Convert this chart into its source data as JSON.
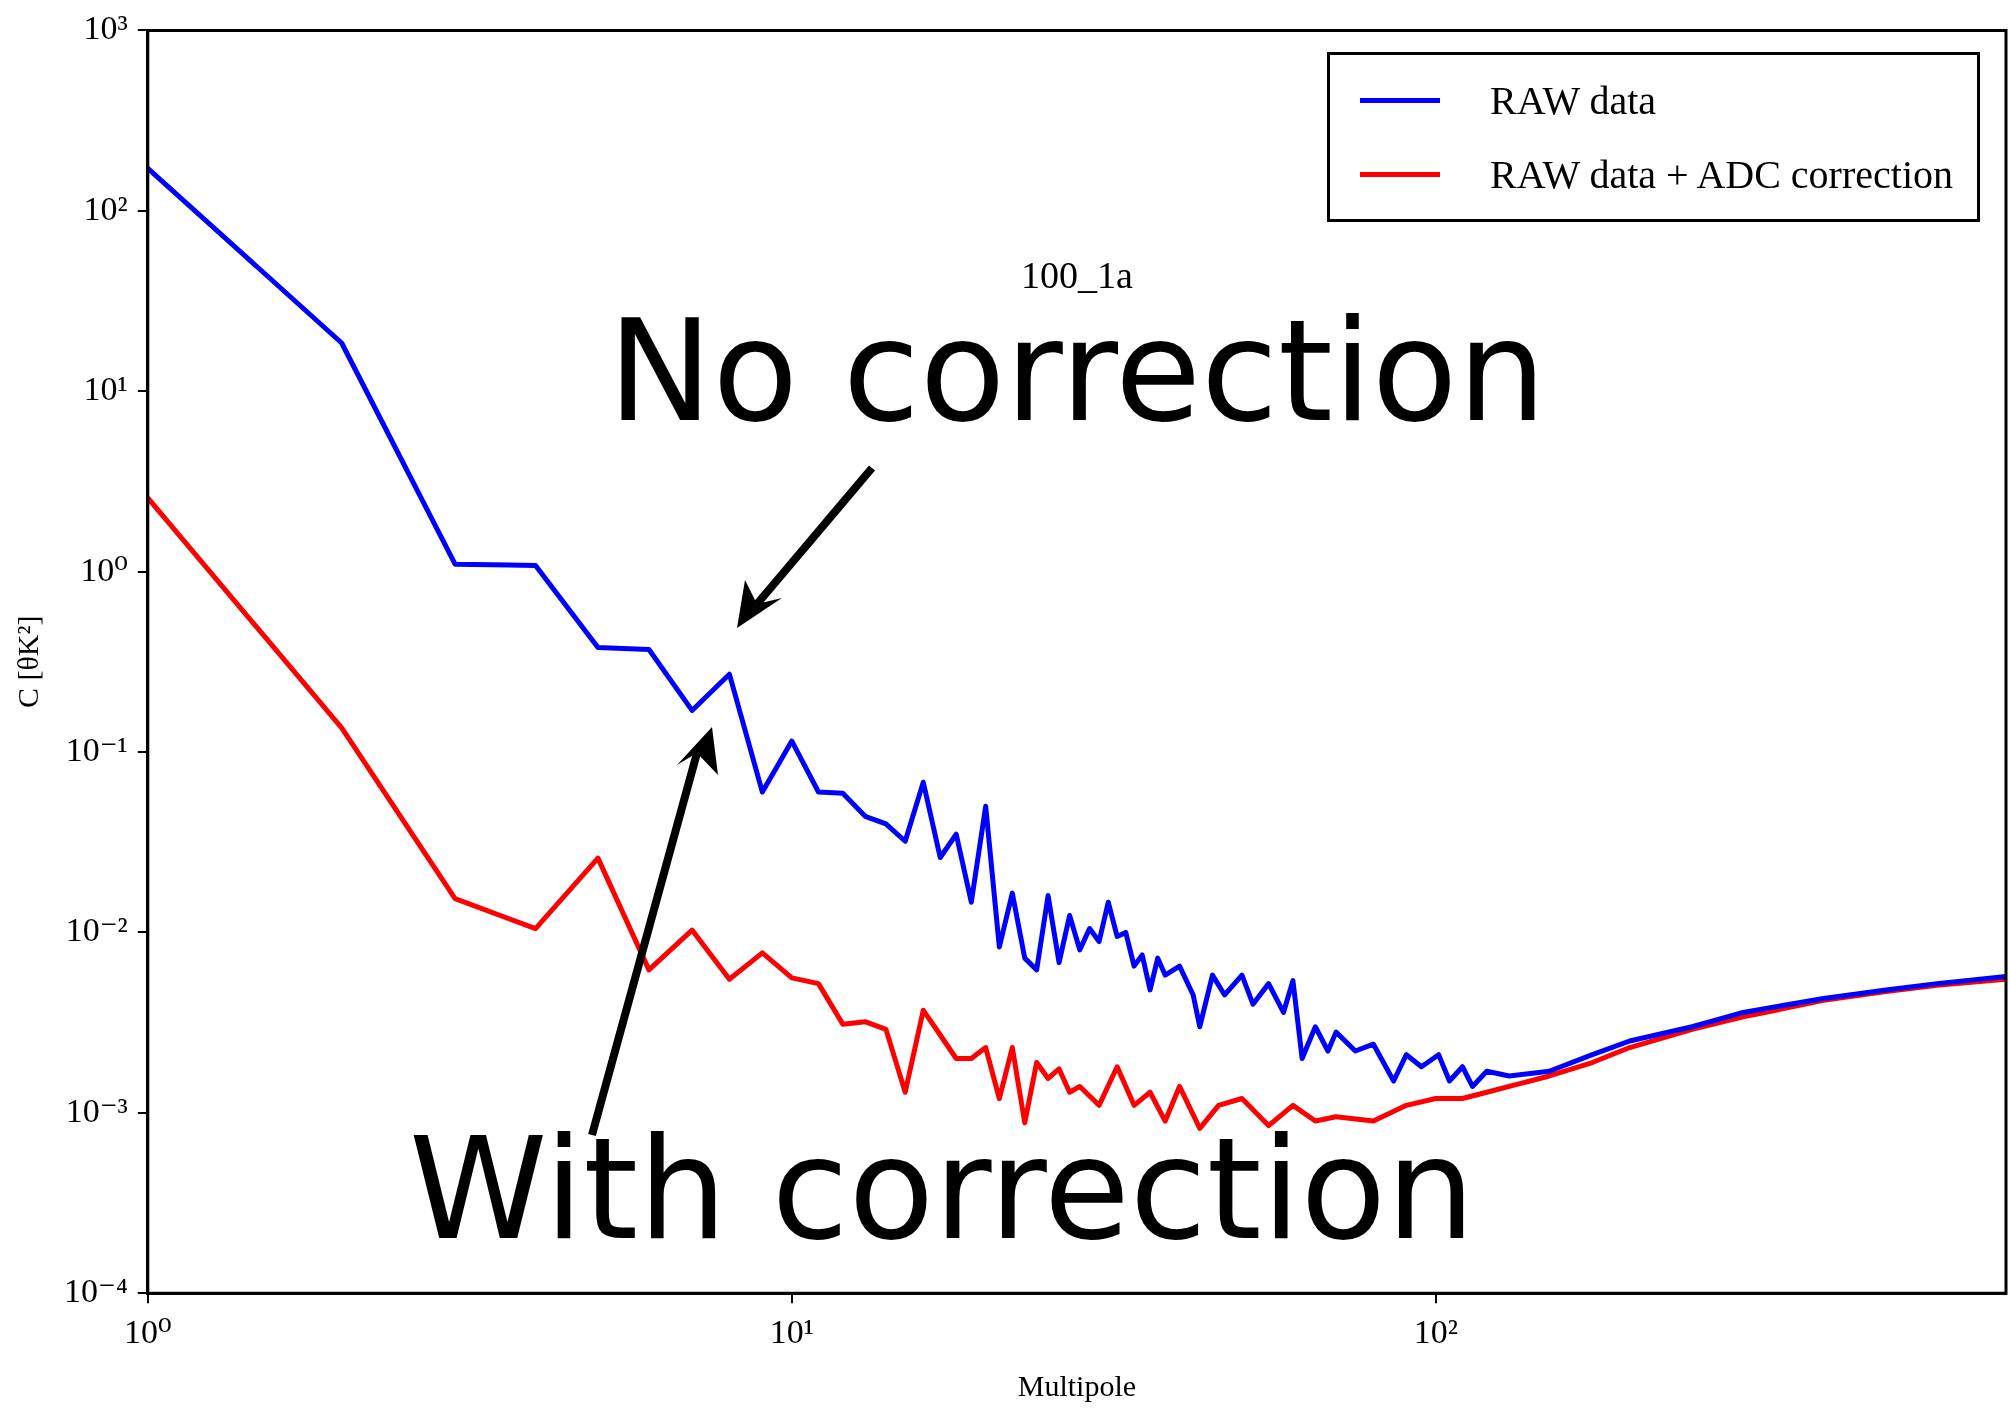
{
  "chart_data": {
    "type": "line",
    "title": "100_1a",
    "xlabel": "Multipole",
    "ylabel": "C [θK²]",
    "log": "xy",
    "grid": false,
    "legend": "top right",
    "marker": "none",
    "line_style": "solid",
    "xlim": [
      1,
      768
    ],
    "ylim": [
      0.0001,
      1000
    ],
    "xticks": [
      {
        "value": 1,
        "label": "10⁰"
      },
      {
        "value": 10,
        "label": "10¹"
      },
      {
        "value": 100,
        "label": "10²"
      }
    ],
    "yticks": [
      {
        "value": 0.0001,
        "label": "10⁻⁴"
      },
      {
        "value": 0.001,
        "label": "10⁻³"
      },
      {
        "value": 0.01,
        "label": "10⁻²"
      },
      {
        "value": 0.1,
        "label": "10⁻¹"
      },
      {
        "value": 1,
        "label": "10⁰"
      },
      {
        "value": 10,
        "label": "10¹"
      },
      {
        "value": 100,
        "label": "10²"
      },
      {
        "value": 1000,
        "label": "10³"
      }
    ],
    "annotations": [
      "No correction",
      "With correction"
    ],
    "series": [
      {
        "name": "RAW data",
        "color": "#0000ff",
        "x": [
          1,
          2,
          3,
          4,
          5,
          6,
          7,
          8,
          9,
          10,
          11,
          12,
          13,
          14,
          15,
          16,
          17,
          18,
          19,
          20,
          21,
          22,
          23,
          24,
          25,
          26,
          27,
          28,
          29,
          30,
          31,
          32,
          33,
          34,
          35,
          36,
          37,
          38,
          40,
          42,
          43,
          45,
          47,
          50,
          52,
          55,
          58,
          60,
          62,
          65,
          68,
          70,
          75,
          80,
          86,
          90,
          95,
          101,
          105,
          110,
          114,
          120,
          130,
          150,
          175,
          200,
          250,
          300,
          400,
          500,
          600,
          768
        ],
        "values": [
          172,
          18.5,
          1.1,
          1.08,
          0.38,
          0.37,
          0.17,
          0.27,
          0.06,
          0.115,
          0.06,
          0.059,
          0.044,
          0.04,
          0.032,
          0.068,
          0.026,
          0.035,
          0.0147,
          0.05,
          0.0083,
          0.0165,
          0.0072,
          0.0062,
          0.016,
          0.0068,
          0.0124,
          0.008,
          0.0105,
          0.0089,
          0.0147,
          0.0095,
          0.01,
          0.0065,
          0.0075,
          0.0048,
          0.0072,
          0.0058,
          0.0065,
          0.0045,
          0.003,
          0.0058,
          0.0045,
          0.0058,
          0.004,
          0.0052,
          0.0036,
          0.0054,
          0.002,
          0.003,
          0.0022,
          0.0028,
          0.0022,
          0.0024,
          0.0015,
          0.0021,
          0.0018,
          0.0021,
          0.0015,
          0.0018,
          0.0014,
          0.0017,
          0.0016,
          0.0017,
          0.0021,
          0.0025,
          0.003,
          0.0036,
          0.0043,
          0.0048,
          0.0052,
          0.0057
        ]
      },
      {
        "name": "RAW data + ADC correction",
        "color": "#ff0000",
        "x": [
          1,
          2,
          3,
          4,
          5,
          6,
          7,
          8,
          9,
          10,
          11,
          12,
          13,
          14,
          15,
          16,
          17,
          18,
          19,
          20,
          21,
          22,
          23,
          24,
          25,
          26,
          27,
          28,
          30,
          32,
          34,
          36,
          38,
          40,
          43,
          46,
          50,
          55,
          60,
          65,
          70,
          80,
          90,
          100,
          110,
          120,
          150,
          175,
          200,
          250,
          300,
          400,
          500,
          600,
          768
        ],
        "values": [
          2.56,
          0.136,
          0.0154,
          0.0105,
          0.0258,
          0.0062,
          0.0103,
          0.0055,
          0.0077,
          0.0056,
          0.0052,
          0.0031,
          0.0032,
          0.0029,
          0.0013,
          0.0037,
          0.0027,
          0.002,
          0.002,
          0.0023,
          0.0012,
          0.0023,
          0.00088,
          0.0019,
          0.00155,
          0.00175,
          0.0013,
          0.0014,
          0.0011,
          0.0018,
          0.0011,
          0.0013,
          0.0009,
          0.0014,
          0.00082,
          0.0011,
          0.0012,
          0.00085,
          0.0011,
          0.0009,
          0.00095,
          0.0009,
          0.0011,
          0.0012,
          0.0012,
          0.0013,
          0.0016,
          0.0019,
          0.0023,
          0.0029,
          0.0034,
          0.0042,
          0.0047,
          0.0051,
          0.0055
        ]
      }
    ]
  }
}
